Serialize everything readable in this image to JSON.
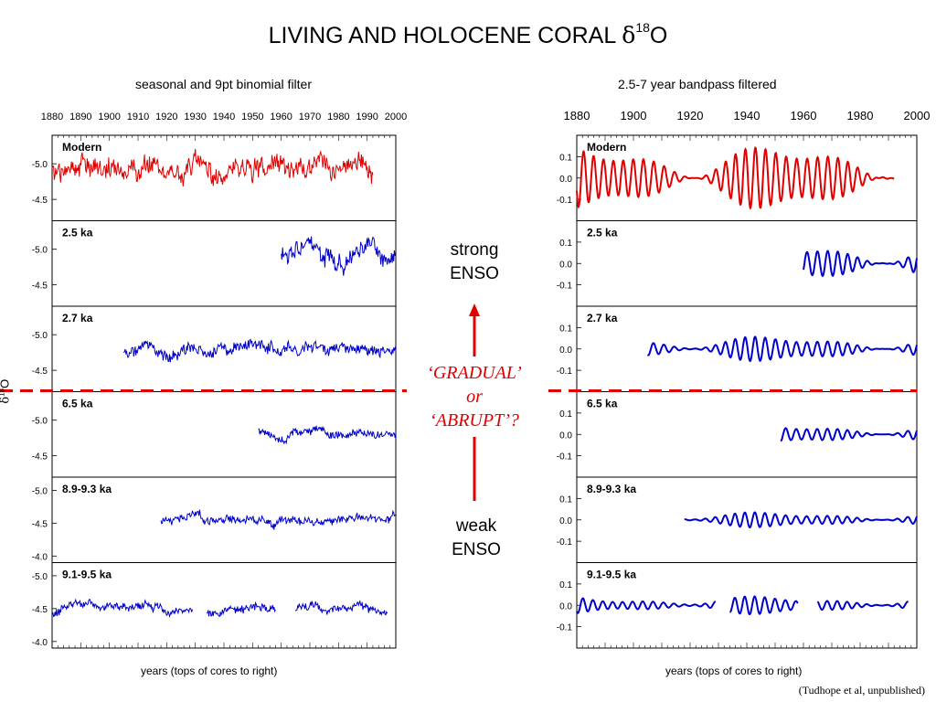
{
  "title": {
    "text": "LIVING AND HOLOCENE CORAL ",
    "delta": "δ",
    "sup": "18",
    "tail": "O"
  },
  "left_panel": {
    "title": "seasonal and 9pt binomial filter",
    "xlabel": "years (tops of cores to right)",
    "ylabel": {
      "delta": "δ",
      "sup": "18",
      "tail": "O"
    },
    "x_ticks": [
      "1880",
      "1890",
      "1900",
      "1910",
      "1920",
      "1930",
      "1940",
      "1950",
      "1960",
      "1970",
      "1980",
      "1990",
      "2000"
    ]
  },
  "right_panel": {
    "title": "2.5-7 year bandpass filtered",
    "xlabel": "years (tops of cores to right)",
    "x_ticks": [
      "1880",
      "1900",
      "1920",
      "1940",
      "1960",
      "1980",
      "2000"
    ]
  },
  "center": {
    "strong": [
      "strong",
      "ENSO"
    ],
    "gradual": [
      "‘GRADUAL’",
      "or",
      "‘ABRUPT’?"
    ],
    "weak": [
      "weak",
      "ENSO"
    ]
  },
  "credit": "(Tudhope et al, unpublished)",
  "colors": {
    "modern": "#e00000",
    "fossil": "#0000cc",
    "divider": "#e00000",
    "arrow": "#e00000"
  },
  "chart_data": [
    {
      "type": "line",
      "title": "seasonal and 9pt binomial filter",
      "xlabel": "years (tops of cores to right)",
      "ylabel": "δ18O",
      "xlim": [
        1880,
        2000
      ],
      "subplots": [
        {
          "name": "Modern",
          "x_range": [
            1880,
            1992
          ],
          "y_ticks": [
            "-5.0",
            "-4.5"
          ],
          "ylim": [
            -4.2,
            -5.4
          ],
          "mean": -4.95,
          "amp": 0.15,
          "color": "#e00000"
        },
        {
          "name": "2.5 ka",
          "x_range": [
            1960,
            2000
          ],
          "y_ticks": [
            "-5.0",
            "-4.5"
          ],
          "ylim": [
            -4.2,
            -5.4
          ],
          "mean": -4.95,
          "amp": 0.13,
          "color": "#0000cc"
        },
        {
          "name": "2.7 ka",
          "x_range": [
            1905,
            2000
          ],
          "y_ticks": [
            "-5.0",
            "-4.5"
          ],
          "ylim": [
            -4.2,
            -5.4
          ],
          "mean": -4.8,
          "amp": 0.09,
          "color": "#0000cc"
        },
        {
          "name": "6.5 ka",
          "x_range": [
            1952,
            2000
          ],
          "y_ticks": [
            "-5.0",
            "-4.5"
          ],
          "ylim": [
            -4.2,
            -5.4
          ],
          "mean": -4.8,
          "amp": 0.06,
          "color": "#0000cc"
        },
        {
          "name": "8.9-9.3 ka",
          "x_range": [
            1918,
            2000
          ],
          "y_ticks": [
            "-5.0",
            "-4.5",
            "-4.0"
          ],
          "ylim": [
            -3.9,
            -5.2
          ],
          "mean": -4.55,
          "amp": 0.07,
          "color": "#0000cc"
        },
        {
          "name": "9.1-9.5 ka",
          "x_range": [
            1880,
            1997
          ],
          "y_ticks": [
            "-5.0",
            "-4.5",
            "-4.0"
          ],
          "ylim": [
            -3.9,
            -5.2
          ],
          "mean": -4.5,
          "amp": 0.07,
          "color": "#0000cc",
          "gaps": [
            [
              1929,
              1934
            ],
            [
              1958,
              1965
            ]
          ]
        }
      ]
    },
    {
      "type": "line",
      "title": "2.5-7 year bandpass filtered",
      "xlabel": "years (tops of cores to right)",
      "xlim": [
        1880,
        2000
      ],
      "subplots": [
        {
          "name": "Modern",
          "x_range": [
            1880,
            1992
          ],
          "y_ticks": [
            "-0.1",
            "0.0",
            "0.1"
          ],
          "ylim": [
            -0.2,
            0.2
          ],
          "amp": 0.13,
          "color": "#e00000"
        },
        {
          "name": "2.5 ka",
          "x_range": [
            1960,
            2000
          ],
          "y_ticks": [
            "-0.1",
            "0.0",
            "0.1"
          ],
          "ylim": [
            -0.2,
            0.2
          ],
          "amp": 0.08,
          "color": "#0000cc"
        },
        {
          "name": "2.7 ka",
          "x_range": [
            1905,
            2000
          ],
          "y_ticks": [
            "-0.1",
            "0.0",
            "0.1"
          ],
          "ylim": [
            -0.2,
            0.2
          ],
          "amp": 0.05,
          "color": "#0000cc"
        },
        {
          "name": "6.5 ka",
          "x_range": [
            1952,
            2000
          ],
          "y_ticks": [
            "-0.1",
            "0.0",
            "0.1"
          ],
          "ylim": [
            -0.2,
            0.2
          ],
          "amp": 0.04,
          "color": "#0000cc"
        },
        {
          "name": "8.9-9.3 ka",
          "x_range": [
            1918,
            2000
          ],
          "y_ticks": [
            "-0.1",
            "0.0",
            "0.1"
          ],
          "ylim": [
            -0.2,
            0.2
          ],
          "amp": 0.03,
          "color": "#0000cc"
        },
        {
          "name": "9.1-9.5 ka",
          "x_range": [
            1880,
            1997
          ],
          "y_ticks": [
            "-0.1",
            "0.0",
            "0.1"
          ],
          "ylim": [
            -0.2,
            0.2
          ],
          "amp": 0.035,
          "color": "#0000cc",
          "gaps": [
            [
              1929,
              1934
            ],
            [
              1958,
              1965
            ]
          ]
        }
      ]
    }
  ]
}
